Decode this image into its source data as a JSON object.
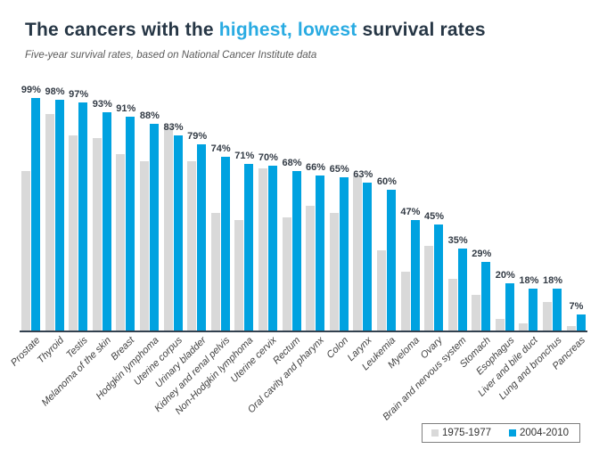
{
  "header": {
    "title_part1": "The cancers with the ",
    "title_highlight": "highest, lowest",
    "title_part2": " survival rates",
    "subtitle": "Five-year survival rates, based on National Cancer Institute data"
  },
  "colors": {
    "title_text": "#263645",
    "title_highlight": "#29ABE2",
    "bar_1975": "#D9D9D9",
    "bar_2004": "#00A2E0",
    "axis_line": "#33414F",
    "data_label": "#333B45"
  },
  "legend": {
    "items": [
      {
        "label": "1975-1977",
        "color": "#D9D9D9"
      },
      {
        "label": "2004-2010",
        "color": "#00A2E0"
      }
    ]
  },
  "chart_data": {
    "type": "bar",
    "title": "The cancers with the highest, lowest survival rates",
    "subtitle": "Five-year survival rates, based on National Cancer Institute data",
    "xlabel": "",
    "ylabel": "",
    "ylim": [
      0,
      100
    ],
    "grid": false,
    "legend_position": "bottom-right",
    "data_labels_series": "2004-2010",
    "categories": [
      "Prostate",
      "Thyroid",
      "Testis",
      "Melanoma of the skin",
      "Breast",
      "Hodgkin lymphoma",
      "Uterine corpus",
      "Urinary bladder",
      "Kidney and renal pelvis",
      "Non-Hodgkin lymphoma",
      "Uterine cervix",
      "Rectum",
      "Oral cavity and pharynx",
      "Colon",
      "Larynx",
      "Leukemia",
      "Myeloma",
      "Ovary",
      "Brain and nervous system",
      "Stomach",
      "Esophagus",
      "Liver and bile duct",
      "Lung and bronchus",
      "Pancreas"
    ],
    "series": [
      {
        "name": "1975-1977",
        "color": "#D9D9D9",
        "values": [
          68,
          92,
          83,
          82,
          75,
          72,
          87,
          72,
          50,
          47,
          69,
          48,
          53,
          50,
          66,
          34,
          25,
          36,
          22,
          15,
          5,
          3,
          12,
          2
        ]
      },
      {
        "name": "2004-2010",
        "color": "#00A2E0",
        "values": [
          99,
          98,
          97,
          93,
          91,
          88,
          83,
          79,
          74,
          71,
          70,
          68,
          66,
          65,
          63,
          60,
          47,
          45,
          35,
          29,
          20,
          18,
          18,
          7
        ],
        "data_labels": [
          "99%",
          "98%",
          "97%",
          "93%",
          "91%",
          "88%",
          "83%",
          "79%",
          "74%",
          "71%",
          "70%",
          "68%",
          "66%",
          "65%",
          "63%",
          "60%",
          "47%",
          "45%",
          "35%",
          "29%",
          "20%",
          "18%",
          "18%",
          "7%"
        ]
      }
    ]
  }
}
